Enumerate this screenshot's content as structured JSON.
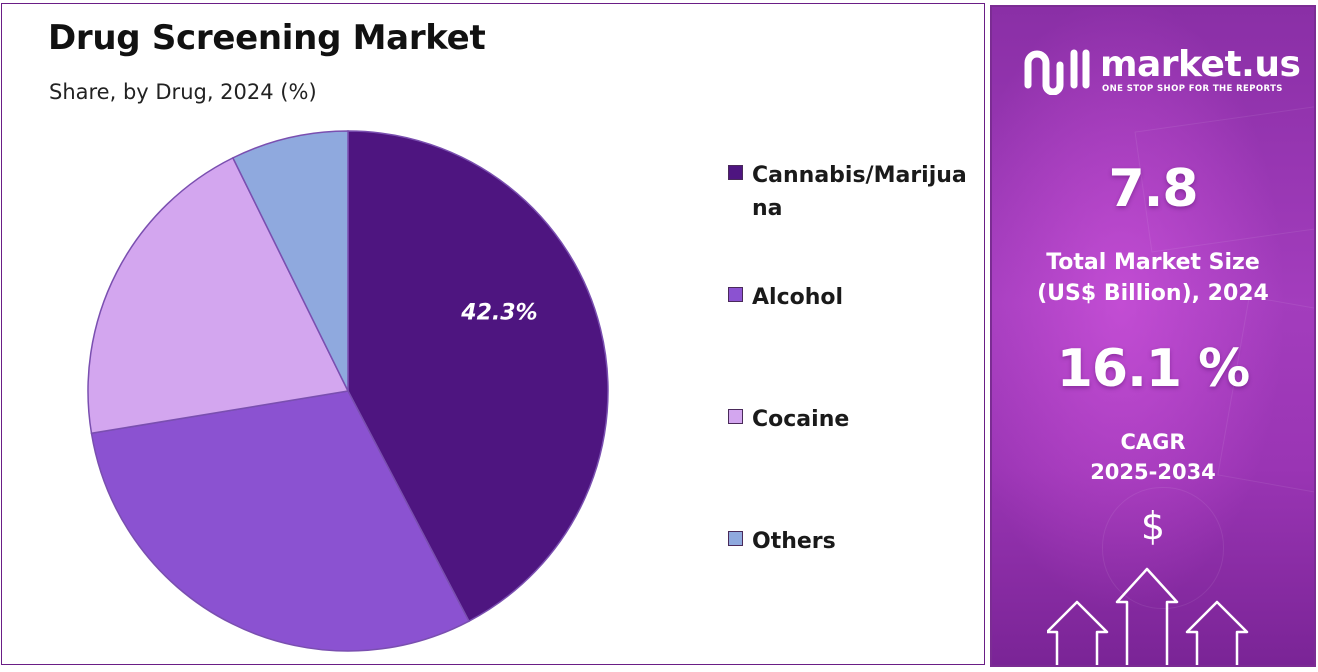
{
  "title": "Drug Screening Market",
  "subtitle": "Share, by Drug, 2024 (%)",
  "colors": {
    "cannabis": "#4e1580",
    "alcohol": "#8b52d1",
    "cocaine": "#d3a6ef",
    "others": "#8fa9de",
    "panel_border": "#6a1e86"
  },
  "chart_data": {
    "type": "pie",
    "title": "Drug Screening Market",
    "subtitle": "Share, by Drug, 2024 (%)",
    "categories": [
      "Cannabis/Marijuana",
      "Alcohol",
      "Cocaine",
      "Others"
    ],
    "values": [
      42.3,
      30.1,
      20.3,
      7.3
    ],
    "data_labels": [
      "42.3%",
      "",
      "",
      ""
    ],
    "legend_position": "right"
  },
  "legend": {
    "items": [
      {
        "label": "Cannabis/Marijuana",
        "color": "#4e1580"
      },
      {
        "label": "Alcohol",
        "color": "#8b52d1"
      },
      {
        "label": "Cocaine",
        "color": "#d3a6ef"
      },
      {
        "label": "Others",
        "color": "#8fa9de"
      }
    ]
  },
  "side_panel": {
    "brand_name": "market.us",
    "brand_tagline": "ONE STOP SHOP FOR THE REPORTS",
    "market_size_value": "7.8",
    "market_size_caption_line1": "Total Market Size",
    "market_size_caption_line2": "(US$ Billion), 2024",
    "cagr_value": "16.1 %",
    "cagr_caption_line1": "CAGR",
    "cagr_caption_line2": "2025-2034",
    "dollar_symbol": "$",
    "icons": [
      "market-us-logo-icon",
      "dollar-icon",
      "growth-arrows-icon"
    ]
  }
}
